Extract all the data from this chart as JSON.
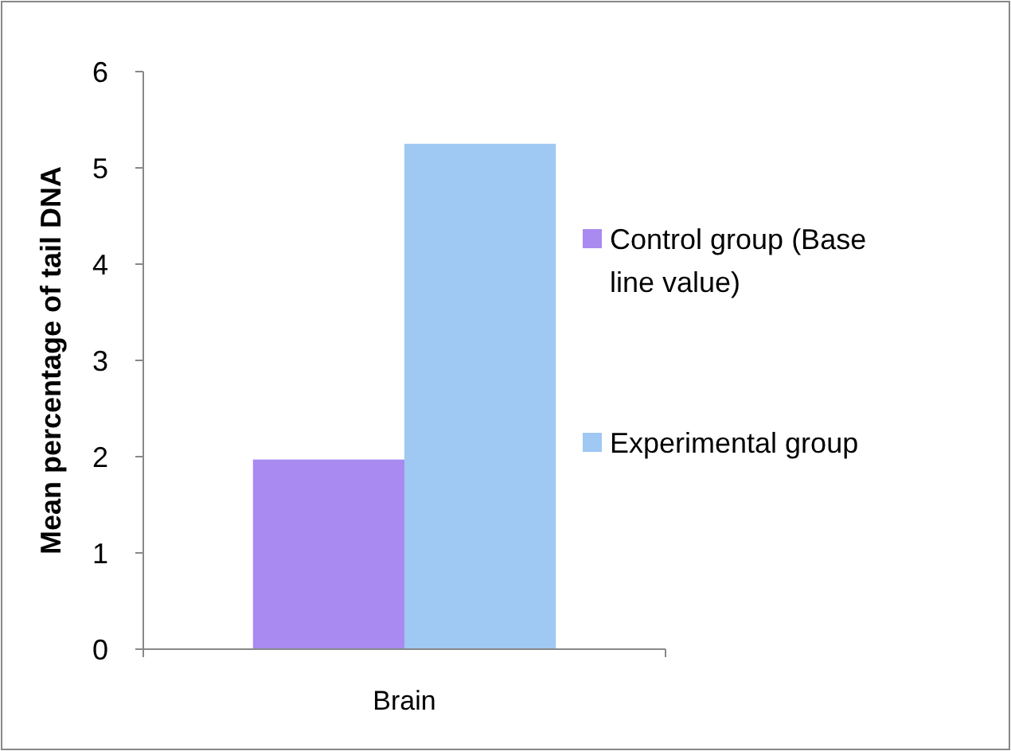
{
  "chart_data": {
    "type": "bar",
    "ylabel": "Mean percentage of tail DNA",
    "categories": [
      "Brain"
    ],
    "series": [
      {
        "name": "Control group (Base line value)",
        "color": "#a98af0",
        "values": [
          1.97
        ]
      },
      {
        "name": "Experimental group",
        "color": "#9fc8f2",
        "values": [
          5.25
        ]
      }
    ],
    "ylim": [
      0,
      6
    ],
    "yticks": [
      0,
      1,
      2,
      3,
      4,
      5,
      6
    ],
    "grid": false,
    "legend": "right"
  }
}
